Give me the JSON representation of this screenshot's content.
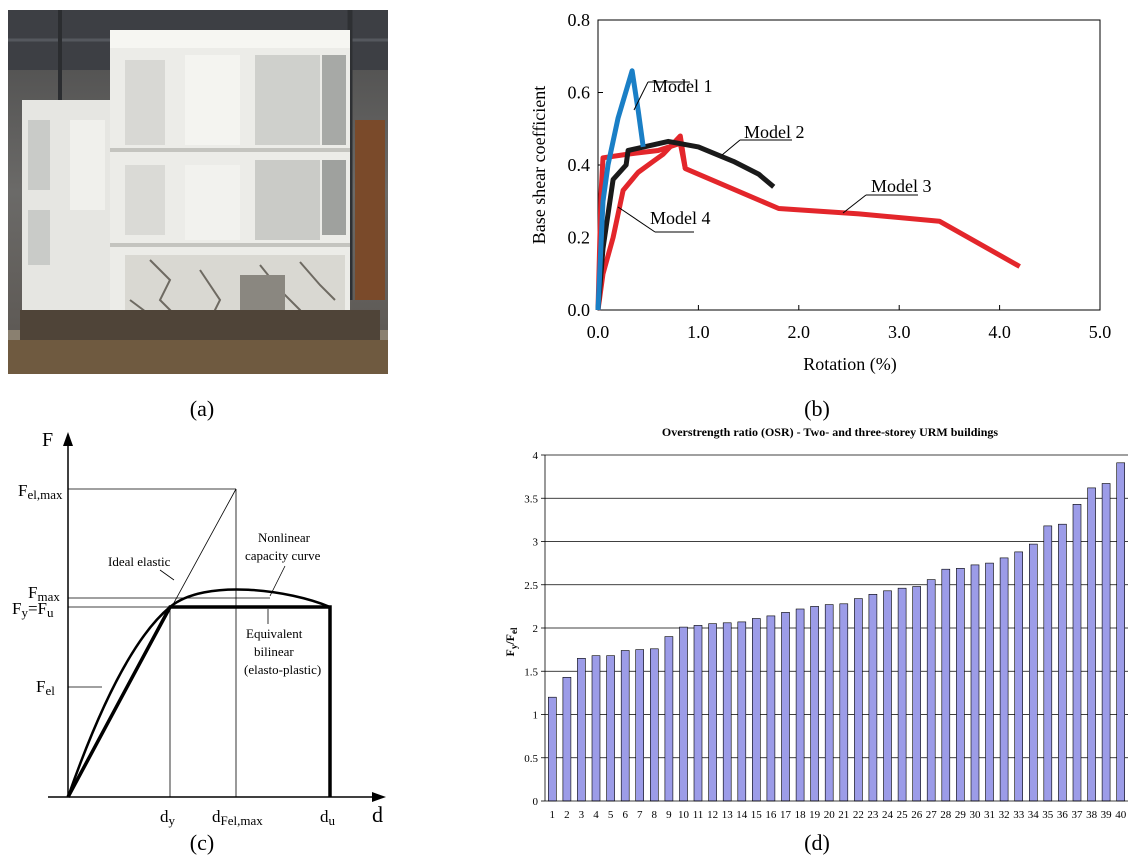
{
  "captions": {
    "a": "(a)",
    "b": "(b)",
    "c": "(c)",
    "d": "(d)"
  },
  "colors": {
    "model1": "#1a7fc6",
    "model2": "#1a1a1a",
    "model3": "#e3262b",
    "model4": "#e3262b",
    "bars": "#9c9ce8"
  },
  "panel_c": {
    "y_axis_label": "F",
    "x_axis_label": "d",
    "f_el_max": "F",
    "f_el_max_sub": "el,max",
    "f_max": "F",
    "f_max_sub": "max",
    "f_y_fu": "F",
    "f_y_fu_mid": "y",
    "f_y_fu_eq": "=F",
    "f_y_fu_sub": "u",
    "f_el": "F",
    "f_el_sub": "el",
    "d_y": "d",
    "d_y_sub": "y",
    "d_fel_max": "d",
    "d_fel_max_sub": "Fel,max",
    "d_u": "d",
    "d_u_sub": "u",
    "ideal_elastic": "Ideal elastic",
    "nonlinear_line1": "Nonlinear",
    "nonlinear_line2": "capacity curve",
    "equiv_line1": "Equivalent",
    "equiv_line2": "bilinear",
    "equiv_line3": "(elasto-plastic)"
  },
  "chart_data": [
    {
      "type": "line",
      "xlabel": "Rotation (%)",
      "ylabel": "Base shear coefficient",
      "xlim": [
        0,
        5.0
      ],
      "ylim": [
        0,
        0.8
      ],
      "xticks": [
        "0.0",
        "1.0",
        "2.0",
        "3.0",
        "4.0",
        "5.0"
      ],
      "yticks": [
        "0.0",
        "0.2",
        "0.4",
        "0.6",
        "0.8"
      ],
      "series": [
        {
          "name": "Model 1",
          "points": [
            [
              0,
              0
            ],
            [
              0.05,
              0.3
            ],
            [
              0.1,
              0.4
            ],
            [
              0.2,
              0.53
            ],
            [
              0.34,
              0.66
            ],
            [
              0.4,
              0.55
            ],
            [
              0.45,
              0.45
            ]
          ]
        },
        {
          "name": "Model 2",
          "points": [
            [
              0,
              0
            ],
            [
              0.05,
              0.17
            ],
            [
              0.15,
              0.36
            ],
            [
              0.28,
              0.4
            ],
            [
              0.3,
              0.44
            ],
            [
              0.7,
              0.465
            ],
            [
              1.0,
              0.45
            ],
            [
              1.35,
              0.41
            ],
            [
              1.6,
              0.375
            ],
            [
              1.75,
              0.34
            ]
          ]
        },
        {
          "name": "Model 3",
          "points": [
            [
              0,
              0
            ],
            [
              0.03,
              0.32
            ],
            [
              0.05,
              0.42
            ],
            [
              0.3,
              0.43
            ],
            [
              0.6,
              0.44
            ],
            [
              0.82,
              0.46
            ],
            [
              0.87,
              0.39
            ],
            [
              1.8,
              0.28
            ],
            [
              2.6,
              0.265
            ],
            [
              3.4,
              0.245
            ],
            [
              4.2,
              0.12
            ]
          ]
        },
        {
          "name": "Model 4",
          "points": [
            [
              0,
              0
            ],
            [
              0.05,
              0.1
            ],
            [
              0.15,
              0.2
            ],
            [
              0.25,
              0.33
            ],
            [
              0.4,
              0.38
            ],
            [
              0.55,
              0.41
            ],
            [
              0.65,
              0.43
            ],
            [
              0.82,
              0.48
            ],
            [
              0.87,
              0.39
            ]
          ]
        }
      ]
    },
    {
      "type": "bar",
      "title": "Overstrength ratio (OSR) - Two- and three-storey URM buildings",
      "ylabel": "F",
      "ylabel_sub_y": "y",
      "ylabel_sub_el": "el",
      "ylim": [
        0,
        4
      ],
      "yticks": [
        "0",
        "0.5",
        "1",
        "1.5",
        "2",
        "2.5",
        "3",
        "3.5",
        "4"
      ],
      "categories": [
        "1",
        "2",
        "3",
        "4",
        "5",
        "6",
        "7",
        "8",
        "9",
        "10",
        "11",
        "12",
        "13",
        "14",
        "15",
        "16",
        "17",
        "18",
        "19",
        "20",
        "21",
        "22",
        "23",
        "24",
        "25",
        "26",
        "27",
        "28",
        "29",
        "30",
        "31",
        "32",
        "33",
        "34",
        "35",
        "36",
        "37",
        "38",
        "39",
        "40"
      ],
      "values": [
        1.2,
        1.43,
        1.65,
        1.68,
        1.68,
        1.74,
        1.75,
        1.76,
        1.9,
        2.01,
        2.03,
        2.05,
        2.06,
        2.07,
        2.11,
        2.14,
        2.18,
        2.22,
        2.25,
        2.27,
        2.28,
        2.34,
        2.39,
        2.43,
        2.46,
        2.48,
        2.56,
        2.68,
        2.69,
        2.73,
        2.75,
        2.81,
        2.88,
        2.97,
        3.18,
        3.2,
        3.43,
        3.62,
        3.67,
        3.91
      ]
    }
  ]
}
